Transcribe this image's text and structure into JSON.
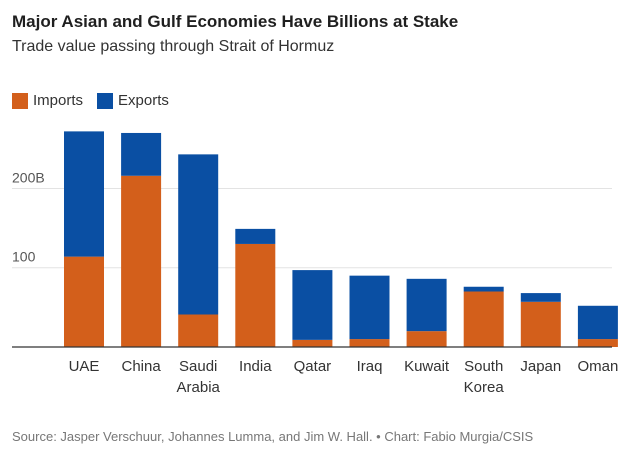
{
  "header": {
    "title": "Major Asian and Gulf Economies Have Billions at Stake",
    "subtitle": "Trade value passing through Strait of Hormuz"
  },
  "legend": [
    {
      "label": "Imports",
      "color": "#d35f1b"
    },
    {
      "label": "Exports",
      "color": "#0a4fa3"
    }
  ],
  "source": "Source: Jasper Verschuur, Johannes Lumma, and Jim W. Hall. • Chart: Fabio Murgia/CSIS",
  "chart_data": {
    "type": "bar",
    "stacked": true,
    "title": "Major Asian and Gulf Economies Have Billions at Stake",
    "subtitle": "Trade value passing through Strait of Hormuz",
    "xlabel": "",
    "ylabel": "",
    "ylim": [
      0,
      275
    ],
    "yticks": [
      {
        "value": 100,
        "label": "100"
      },
      {
        "value": 200,
        "label": "200B"
      }
    ],
    "grid": true,
    "legend_position": "top-left",
    "categories": [
      [
        "UAE"
      ],
      [
        "China"
      ],
      [
        "Saudi",
        "Arabia"
      ],
      [
        "India"
      ],
      [
        "Qatar"
      ],
      [
        "Iraq"
      ],
      [
        "Kuwait"
      ],
      [
        "South",
        "Korea"
      ],
      [
        "Japan"
      ],
      [
        "Oman"
      ]
    ],
    "series": [
      {
        "name": "Imports",
        "color": "#d35f1b",
        "values": [
          114,
          216,
          41,
          130,
          9,
          10,
          20,
          70,
          57,
          10
        ]
      },
      {
        "name": "Exports",
        "color": "#0a4fa3",
        "values": [
          158,
          54,
          202,
          19,
          88,
          80,
          66,
          6,
          11,
          42
        ]
      }
    ]
  }
}
